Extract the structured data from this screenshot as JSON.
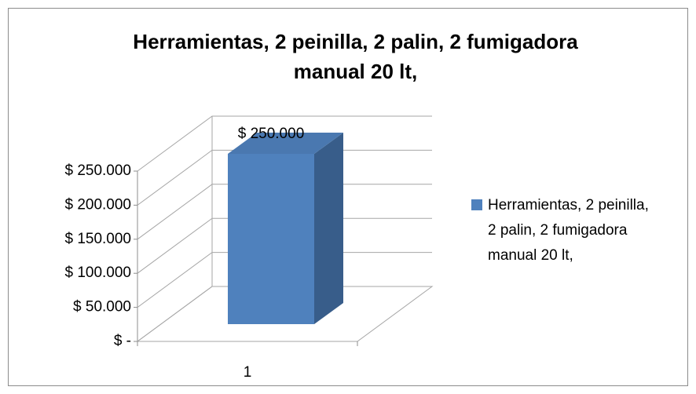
{
  "chart_data": {
    "type": "bar",
    "title": "Herramientas, 2 peinilla, 2 palin, 2 fumigadora manual 20 lt,",
    "categories": [
      "1"
    ],
    "series": [
      {
        "name": "Herramientas, 2 peinilla, 2 palin, 2 fumigadora manual 20 lt,",
        "color": "#4f81bd",
        "values": [
          250000
        ],
        "value_labels": [
          "$ 250.000"
        ]
      }
    ],
    "ylim": [
      0,
      250000
    ],
    "yticks": [
      {
        "value": 0,
        "label": "$ -"
      },
      {
        "value": 50000,
        "label": "$ 50.000"
      },
      {
        "value": 100000,
        "label": "$ 100.000"
      },
      {
        "value": 150000,
        "label": "$ 150.000"
      },
      {
        "value": 200000,
        "label": "$ 200.000"
      },
      {
        "value": 250000,
        "label": "$ 250.000"
      }
    ],
    "grid": true,
    "legend": "right"
  }
}
